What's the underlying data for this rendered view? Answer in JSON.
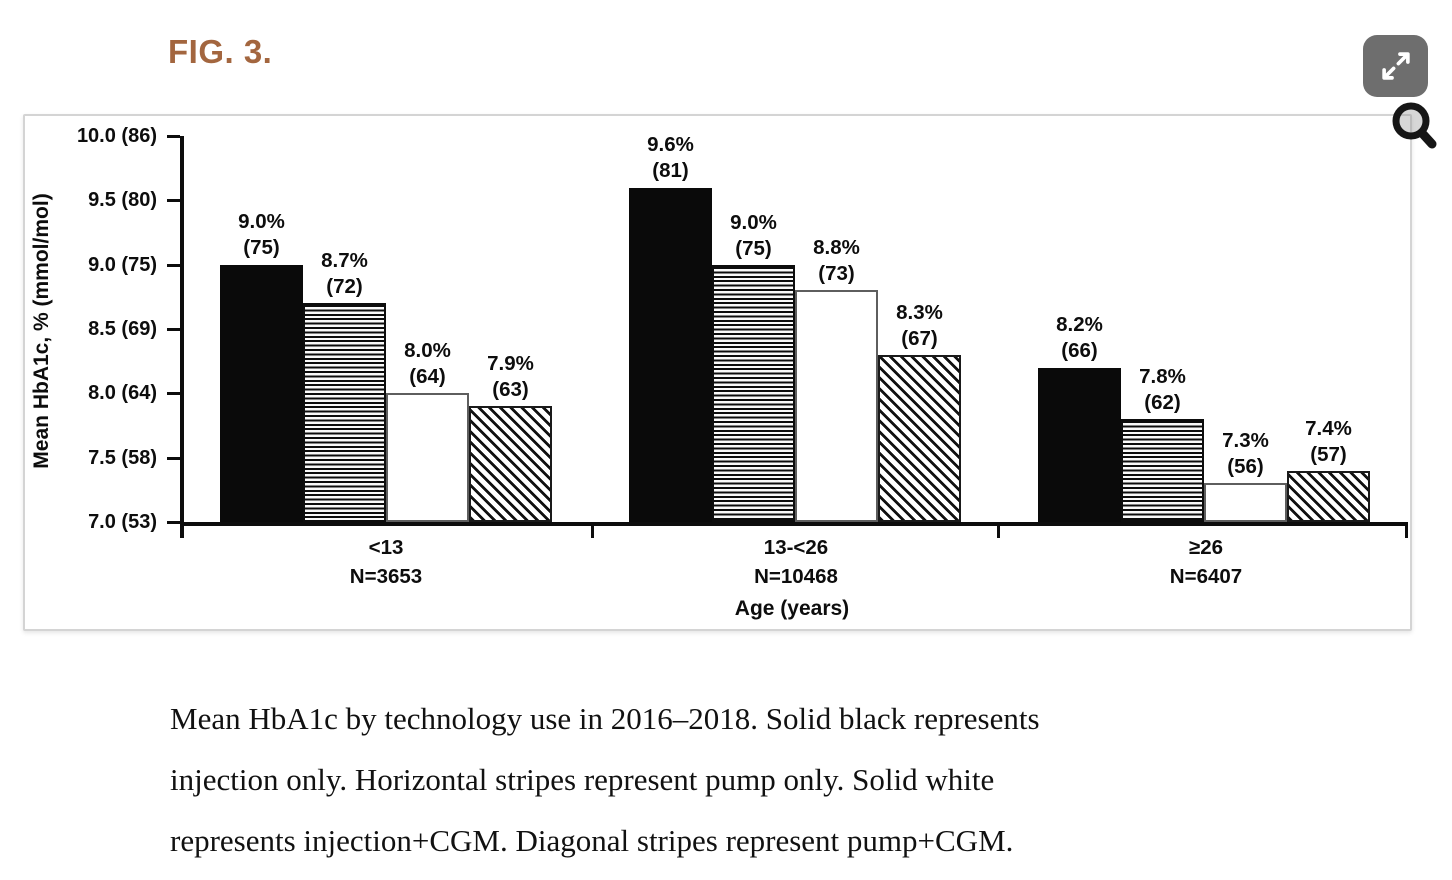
{
  "figure": {
    "label": "FIG. 3.",
    "accent_color": "#a3663f"
  },
  "controls": {
    "expand_button": "expand-icon",
    "magnifier": "magnifier-icon"
  },
  "chart_data": {
    "type": "bar",
    "title": "",
    "ylabel": "Mean HbA1c, % (mmol/mol)",
    "xlabel": "Age (years)",
    "ylim": [
      7.0,
      10.0
    ],
    "grid": false,
    "legend_position": "none (patterns described in caption)",
    "yticks": [
      {
        "v": 10.0,
        "label": "10.0 (86)"
      },
      {
        "v": 9.5,
        "label": "9.5 (80)"
      },
      {
        "v": 9.0,
        "label": "9.0 (75)"
      },
      {
        "v": 8.5,
        "label": "8.5 (69)"
      },
      {
        "v": 8.0,
        "label": "8.0 (64)"
      },
      {
        "v": 7.5,
        "label": "7.5 (58)"
      },
      {
        "v": 7.0,
        "label": "7.0 (53)"
      }
    ],
    "categories": [
      {
        "label": "<13",
        "n": "N=3653"
      },
      {
        "label": "13-<26",
        "n": "N=10468"
      },
      {
        "label": "≥26",
        "n": "N=6407"
      }
    ],
    "series": [
      {
        "name": "injection only",
        "pattern": "solid-black",
        "values": [
          9.0,
          9.6,
          8.2
        ],
        "value_labels": [
          [
            "9.0%",
            "(75)"
          ],
          [
            "9.6%",
            "(81)"
          ],
          [
            "8.2%",
            "(66)"
          ]
        ]
      },
      {
        "name": "pump only",
        "pattern": "hstripe",
        "values": [
          8.7,
          9.0,
          7.8
        ],
        "value_labels": [
          [
            "8.7%",
            "(72)"
          ],
          [
            "9.0%",
            "(75)"
          ],
          [
            "7.8%",
            "(62)"
          ]
        ]
      },
      {
        "name": "injection+CGM",
        "pattern": "white",
        "values": [
          8.0,
          8.8,
          7.3
        ],
        "value_labels": [
          [
            "8.0%",
            "(64)"
          ],
          [
            "8.8%",
            "(73)"
          ],
          [
            "7.3%",
            "(56)"
          ]
        ]
      },
      {
        "name": "pump+CGM",
        "pattern": "dstripe",
        "values": [
          7.9,
          8.3,
          7.4
        ],
        "value_labels": [
          [
            "7.9%",
            "(63)"
          ],
          [
            "8.3%",
            "(67)"
          ],
          [
            "7.4%",
            "(57)"
          ]
        ]
      }
    ]
  },
  "caption": {
    "lines": [
      "Mean HbA1c by technology use in 2016–2018. Solid black represents",
      "injection only. Horizontal stripes represent pump only. Solid white",
      "represents injection+CGM. Diagonal stripes represent pump+CGM."
    ]
  }
}
